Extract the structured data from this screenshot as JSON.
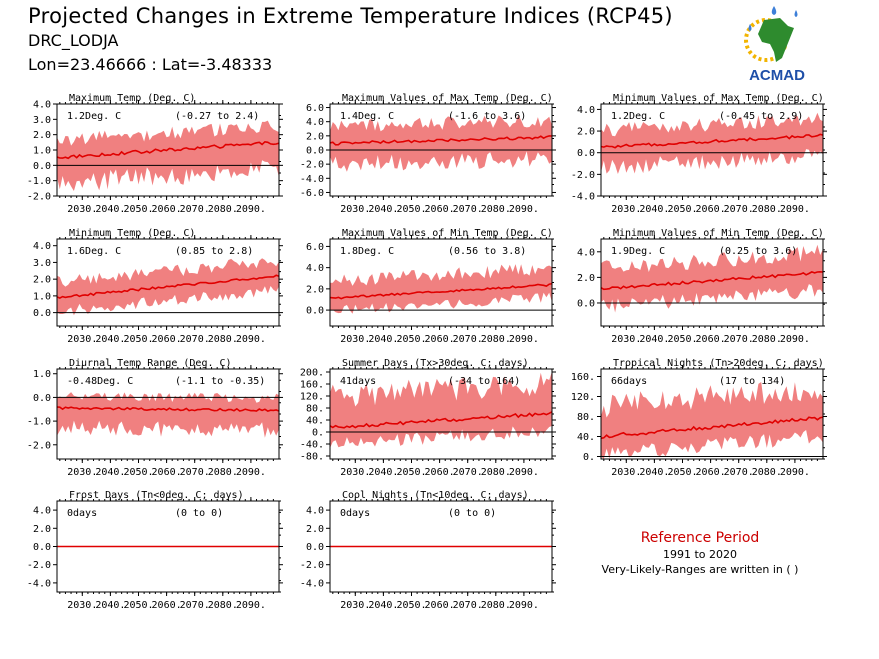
{
  "header": {
    "title": "Projected Changes in Extreme Temperature Indices (RCP45)",
    "location": "DRC_LODJA",
    "coords": "Lon=23.46666 : Lat=-3.48333"
  },
  "logo": {
    "text": "ACMAD",
    "icon": "africa-map-sun-icon"
  },
  "reference": {
    "title": "Reference Period",
    "years": "1991 to 2020",
    "note": "Very-Likely-Ranges are written in ( )"
  },
  "colors": {
    "band": "#f08080",
    "line": "#e00000",
    "text": "#000000",
    "ref_title": "#cc0000"
  },
  "chart_data": [
    {
      "type": "area",
      "title": "Maximum Temp (Deg. C)",
      "label": "1.2Deg. C",
      "range": "(-0.27 to 2.4)",
      "x_start": 2021,
      "x_end": 2100,
      "xticks": [
        "2030.",
        "2040.",
        "2050.",
        "2060.",
        "2070.",
        "2080.",
        "2090."
      ],
      "ylim": [
        -2,
        4
      ],
      "yticks": [
        "4.0",
        "3.0",
        "2.0",
        "1.0",
        "0.0",
        "-1.0",
        "-2.0"
      ],
      "ytick_values": [
        4,
        3,
        2,
        1,
        0,
        -1,
        -2
      ],
      "median_start": 0.5,
      "median_end": 1.5,
      "spread_low": 1.8,
      "spread_high": 1.2
    },
    {
      "type": "area",
      "title": "Maximum Values of Max Temp (Deg. C)",
      "label": "1.4Deg. C",
      "range": "(-1.6 to 3.6)",
      "x_start": 2021,
      "x_end": 2100,
      "xticks": [
        "2030.",
        "2040.",
        "2050.",
        "2060.",
        "2070.",
        "2080.",
        "2090."
      ],
      "ylim": [
        -6.5,
        6.5
      ],
      "yticks": [
        "6.0",
        "4.0",
        "2.0",
        "0.0",
        "-2.0",
        "-4.0",
        "-6.0"
      ],
      "ytick_values": [
        6,
        4,
        2,
        0,
        -2,
        -4,
        -6
      ],
      "median_start": 0.9,
      "median_end": 1.8,
      "spread_low": 3.2,
      "spread_high": 2.6
    },
    {
      "type": "area",
      "title": "Minimum Values of Max Temp (Deg. C)",
      "label": "1.2Deg. C",
      "range": "(-0.45 to 2.9)",
      "x_start": 2021,
      "x_end": 2100,
      "xticks": [
        "2030.",
        "2040.",
        "2050.",
        "2060.",
        "2070.",
        "2080.",
        "2090."
      ],
      "ylim": [
        -4,
        4.5
      ],
      "yticks": [
        "4.0",
        "2.0",
        "0.0",
        "-2.0",
        "-4.0"
      ],
      "ytick_values": [
        4,
        2,
        0,
        -2,
        -4
      ],
      "median_start": 0.5,
      "median_end": 1.6,
      "spread_low": 2.0,
      "spread_high": 1.7
    },
    {
      "type": "area",
      "title": "Minimum Temp (Deg. C)",
      "label": "1.6Deg. C",
      "range": "(0.85 to 2.8)",
      "x_start": 2021,
      "x_end": 2100,
      "xticks": [
        "2030.",
        "2040.",
        "2050.",
        "2060.",
        "2070.",
        "2080.",
        "2090."
      ],
      "ylim": [
        -0.8,
        4.4
      ],
      "yticks": [
        "4.0",
        "3.0",
        "2.0",
        "1.0",
        "0.0"
      ],
      "ytick_values": [
        4,
        3,
        2,
        1,
        0
      ],
      "median_start": 0.9,
      "median_end": 2.2,
      "spread_low": 0.9,
      "spread_high": 1.0
    },
    {
      "type": "area",
      "title": "Maximum Values of Min Temp (Deg. C)",
      "label": "1.8Deg. C",
      "range": "(0.56 to 3.8)",
      "x_start": 2021,
      "x_end": 2100,
      "xticks": [
        "2030.",
        "2040.",
        "2050.",
        "2060.",
        "2070.",
        "2080.",
        "2090."
      ],
      "ylim": [
        -1.5,
        6.7
      ],
      "yticks": [
        "6.0",
        "4.0",
        "2.0",
        "0.0"
      ],
      "ytick_values": [
        6,
        4,
        2,
        0
      ],
      "median_start": 1.1,
      "median_end": 2.4,
      "spread_low": 1.3,
      "spread_high": 1.7
    },
    {
      "type": "area",
      "title": "Minimum Values of Min Temp (Deg. C)",
      "label": "1.9Deg. C",
      "range": "(0.25 to 3.6)",
      "x_start": 2021,
      "x_end": 2100,
      "xticks": [
        "2030.",
        "2040.",
        "2050.",
        "2060.",
        "2070.",
        "2080.",
        "2090."
      ],
      "ylim": [
        -1.8,
        5.0
      ],
      "yticks": [
        "4.0",
        "2.0",
        "0.0"
      ],
      "ytick_values": [
        4,
        2,
        0
      ],
      "median_start": 1.1,
      "median_end": 2.4,
      "spread_low": 1.5,
      "spread_high": 1.7
    },
    {
      "type": "area",
      "title": "Diurnal Temp Range (Deg. C)",
      "label": "-0.48Deg. C",
      "range": "(-1.1 to -0.35)",
      "x_start": 2021,
      "x_end": 2100,
      "xticks": [
        "2030.",
        "2040.",
        "2050.",
        "2060.",
        "2070.",
        "2080.",
        "2090."
      ],
      "ylim": [
        -2.6,
        1.2
      ],
      "yticks": [
        "1.0",
        "0.0",
        "-1.0",
        "-2.0"
      ],
      "ytick_values": [
        1,
        0,
        -1,
        -2
      ],
      "median_start": -0.45,
      "median_end": -0.55,
      "spread_low": 0.9,
      "spread_high": 0.55
    },
    {
      "type": "area",
      "title": "Summer Days (Tx>30deg. C; days)",
      "label": "41days",
      "range": "(-34 to 164)",
      "x_start": 2021,
      "x_end": 2100,
      "xticks": [
        "2030.",
        "2040.",
        "2050.",
        "2060.",
        "2070.",
        "2080.",
        "2090."
      ],
      "ylim": [
        -90,
        210
      ],
      "yticks": [
        "200.",
        "160.",
        "120.",
        "80.",
        "40.",
        "0.",
        "-40.",
        "-80."
      ],
      "ytick_values": [
        200,
        160,
        120,
        80,
        40,
        0,
        -40,
        -80
      ],
      "median_start": 15,
      "median_end": 62,
      "spread_low": 60,
      "spread_high": 110
    },
    {
      "type": "area",
      "title": "Tropical Nights (Tn>20deg. C; days)",
      "label": "66days",
      "range": "(17 to 134)",
      "x_start": 2021,
      "x_end": 2100,
      "xticks": [
        "2030.",
        "2040.",
        "2050.",
        "2060.",
        "2070.",
        "2080.",
        "2090."
      ],
      "ylim": [
        -5,
        175
      ],
      "yticks": [
        "160.",
        "120.",
        "80.",
        "40.",
        "0."
      ],
      "ytick_values": [
        160,
        120,
        80,
        40,
        0
      ],
      "median_start": 40,
      "median_end": 78,
      "spread_low": 40,
      "spread_high": 65
    },
    {
      "type": "area",
      "title": "Frost Days (Tn<0deg. C; days)",
      "label": "0days",
      "range": "(0 to 0)",
      "x_start": 2021,
      "x_end": 2100,
      "xticks": [
        "2030.",
        "2040.",
        "2050.",
        "2060.",
        "2070.",
        "2080.",
        "2090."
      ],
      "ylim": [
        -5,
        5
      ],
      "yticks": [
        "4.0",
        "2.0",
        "0.0",
        "-2.0",
        "-4.0"
      ],
      "ytick_values": [
        4,
        2,
        0,
        -2,
        -4
      ],
      "median_start": 0,
      "median_end": 0,
      "spread_low": 0,
      "spread_high": 0
    },
    {
      "type": "area",
      "title": "Cool Nights (Tn<10deg. C; days)",
      "label": "0days",
      "range": "(0 to 0)",
      "x_start": 2021,
      "x_end": 2100,
      "xticks": [
        "2030.",
        "2040.",
        "2050.",
        "2060.",
        "2070.",
        "2080.",
        "2090."
      ],
      "ylim": [
        -5,
        5
      ],
      "yticks": [
        "4.0",
        "2.0",
        "0.0",
        "-2.0",
        "-4.0"
      ],
      "ytick_values": [
        4,
        2,
        0,
        -2,
        -4
      ],
      "median_start": 0,
      "median_end": 0,
      "spread_low": 0,
      "spread_high": 0
    }
  ]
}
